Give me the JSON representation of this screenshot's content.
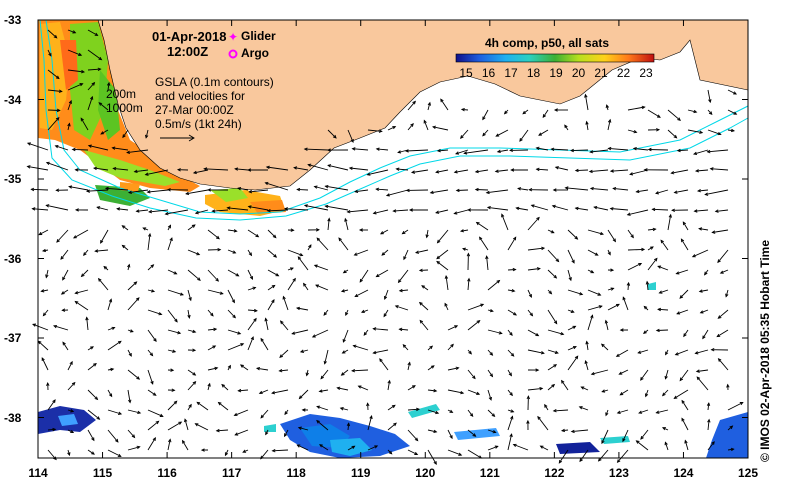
{
  "header": {
    "date": "01-Apr-2018",
    "time": "12:00Z",
    "legend_glider": "Glider",
    "legend_argo": "Argo",
    "glider_color": "#ff00ff",
    "argo_color": "#ff00ff"
  },
  "annotation": {
    "contour_200": "200m",
    "contour_1000": "1000m",
    "gsla_line1": "GSLA (0.1m contours)",
    "gsla_line2": "and velocities for",
    "gsla_line3": "27-Mar 00:00Z",
    "scale_label": "0.5m/s (1kt 24h)"
  },
  "colorbar": {
    "title": "4h comp, p50, all sats",
    "ticks": [
      "15",
      "16",
      "17",
      "18",
      "19",
      "20",
      "21",
      "22",
      "23"
    ]
  },
  "axes": {
    "x_ticks": [
      "114",
      "115",
      "116",
      "117",
      "118",
      "119",
      "120",
      "121",
      "122",
      "123",
      "124",
      "125"
    ],
    "y_ticks": [
      "-33",
      "-34",
      "-35",
      "-36",
      "-37",
      "-38"
    ]
  },
  "credit": "© IMOS 02-Apr-2018 05:35 Hobart Time",
  "colors": {
    "land": "#f9c89d",
    "shelf_contour": "#00d8e8",
    "arrow": "#000000"
  }
}
